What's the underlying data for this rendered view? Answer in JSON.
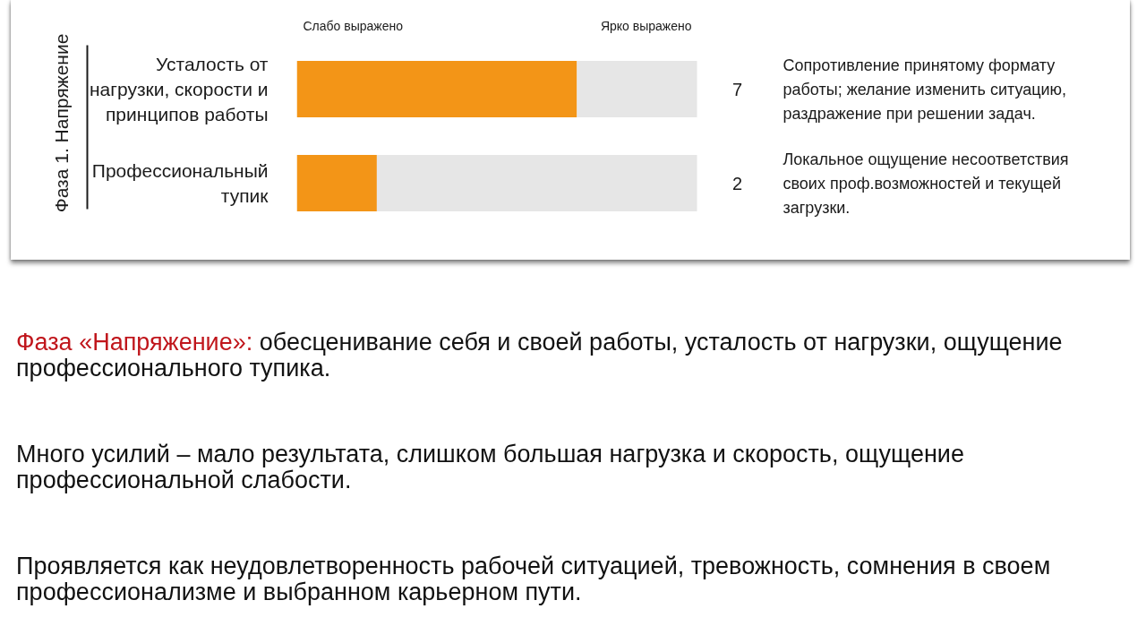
{
  "chart_data": {
    "type": "bar",
    "orientation": "horizontal",
    "stacked": true,
    "categories": [
      "Усталость от нагрузки, скорости и принципов работы",
      "Профессиональный тупик"
    ],
    "series": [
      {
        "color": "#f39517",
        "values": [
          7,
          2
        ],
        "value_labels": [
          "7",
          "2"
        ]
      },
      {
        "color": "#e6e6e6",
        "values": [
          3,
          8
        ]
      }
    ],
    "ylabel": "Фаза 1. Напряжение",
    "tick_labels": "y",
    "annotations": [
      "Слабо выражено",
      "Ярко выражено",
      "Сопротивление принятому формату работы; желание изменить ситуацию, раздражение при решении задач.",
      "Локальное ощущение несоответствия своих проф.возможностей и текущей загрузки.",
      "Фаза «Напряжение»:",
      "обесценивание себя и своей работы, усталость от нагрузки, ощущение профессионального тупика.",
      "Много усилий – мало результата, слишком большая нагрузка и скорость, ощущение профессиональной слабости.",
      "Проявляется как неудовлетворенность рабочей ситуацией, тревожность, сомнения в своем профессионализме и выбранном карьерном пути."
    ]
  }
}
